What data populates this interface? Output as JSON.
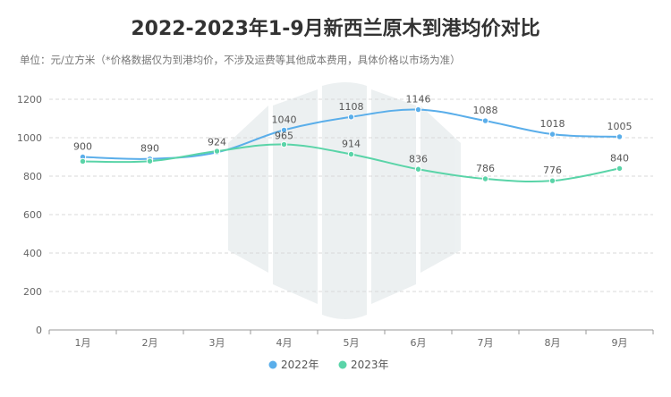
{
  "title": "2022-2023年1-9月新西兰原木到港均价对比",
  "subtitle": "单位：元/立方米（*价格数据仅为到港均价，不涉及运费等其他成本费用，具体价格以市场为准）",
  "chart_data": {
    "type": "line",
    "categories": [
      "1月",
      "2月",
      "3月",
      "4月",
      "5月",
      "6月",
      "7月",
      "8月",
      "9月"
    ],
    "series": [
      {
        "name": "2022年",
        "color": "#5aaeea",
        "values": [
          900,
          890,
          924,
          1040,
          1108,
          1146,
          1088,
          1018,
          1005
        ]
      },
      {
        "name": "2023年",
        "color": "#5ad4a8",
        "values": [
          877,
          878,
          930,
          965,
          914,
          836,
          786,
          776,
          840
        ]
      }
    ],
    "data_labels_series": "2022年",
    "labeled_series_2023_indices": [
      3,
      4,
      5,
      6,
      7,
      8
    ],
    "ylim": [
      0,
      1200
    ],
    "yticks": [
      0,
      200,
      400,
      600,
      800,
      1000,
      1200
    ],
    "grid": true,
    "legend_position": "bottom"
  }
}
